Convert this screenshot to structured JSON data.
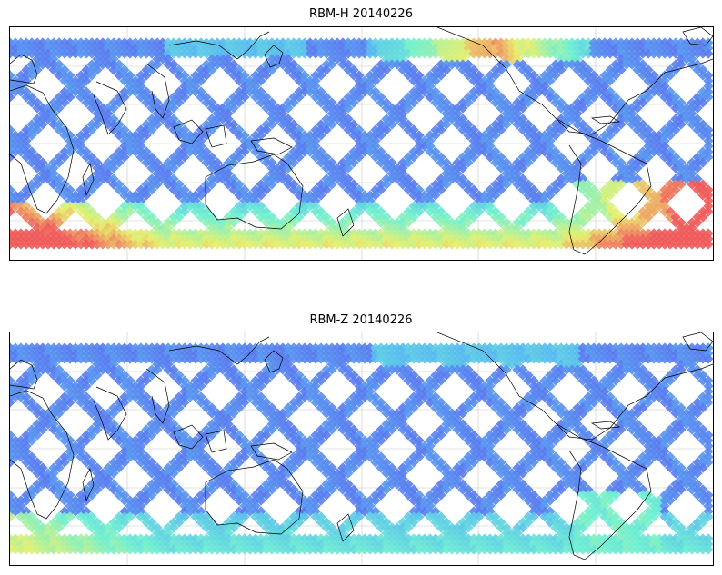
{
  "figure": {
    "panels": [
      {
        "title": "RBM-H 20140226",
        "variant": "H"
      },
      {
        "title": "RBM-Z 20140226",
        "variant": "Z"
      }
    ]
  },
  "colors": {
    "low": "#5a6af0",
    "mid_low": "#55b8f0",
    "mid": "#6ef0d0",
    "mid_high": "#e8f06a",
    "high": "#f05a5a",
    "coast": "#000000",
    "grid": "#c8c8c8"
  },
  "projection": "equirectangular centered at 180°"
}
